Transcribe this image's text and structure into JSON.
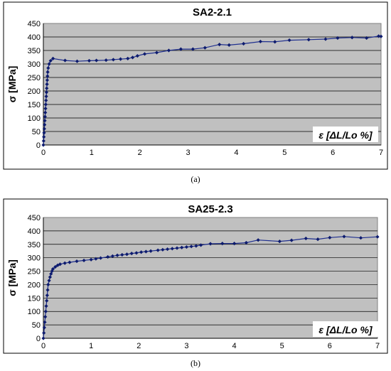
{
  "chart_data": [
    {
      "type": "line",
      "title": "SA2-2.1",
      "xlabel": "ε [ΔL/Lo %]",
      "ylabel": "σ [MPa]",
      "caption": "(a)",
      "xlim": [
        0,
        7
      ],
      "ylim": [
        0,
        450
      ],
      "xticks": [
        0,
        1,
        2,
        3,
        4,
        5,
        6,
        7
      ],
      "yticks": [
        0,
        50,
        100,
        150,
        200,
        250,
        300,
        350,
        400,
        450
      ],
      "grid": true,
      "legend": "none",
      "colors": {
        "plot_bg": "#c0c0c0",
        "line": "#1f2f8f",
        "marker": "#0d1b6e",
        "grid": "#000000"
      },
      "series": [
        {
          "x": [
            0,
            0.005,
            0.01,
            0.015,
            0.02,
            0.025,
            0.03,
            0.035,
            0.04,
            0.045,
            0.05,
            0.055,
            0.06,
            0.065,
            0.07,
            0.075,
            0.08,
            0.085,
            0.09,
            0.1,
            0.12,
            0.15,
            0.2,
            0.45,
            0.7,
            0.95,
            1.1,
            1.3,
            1.45,
            1.6,
            1.75,
            1.85,
            1.95,
            2.1,
            2.35,
            2.6,
            2.85,
            3.1,
            3.35,
            3.65,
            3.85,
            4.15,
            4.5,
            4.8,
            5.1,
            5.5,
            5.85,
            6.1,
            6.4,
            6.7,
            6.95,
            7.0
          ],
          "values": [
            0,
            15,
            30,
            45,
            60,
            75,
            90,
            105,
            120,
            135,
            150,
            165,
            180,
            195,
            210,
            225,
            240,
            255,
            270,
            285,
            300,
            312,
            320,
            313,
            310,
            312,
            313,
            314,
            316,
            318,
            320,
            324,
            330,
            337,
            342,
            350,
            355,
            355,
            360,
            372,
            370,
            375,
            383,
            382,
            388,
            390,
            392,
            396,
            398,
            396,
            403,
            402
          ]
        }
      ]
    },
    {
      "type": "line",
      "title": "SA25-2.3",
      "xlabel": "ε [ΔL/Lo %]",
      "ylabel": "σ [MPa]",
      "caption": "(b)",
      "xlim": [
        0,
        7
      ],
      "ylim": [
        0,
        450
      ],
      "xticks": [
        0,
        1,
        2,
        3,
        4,
        5,
        6,
        7
      ],
      "yticks": [
        0,
        50,
        100,
        150,
        200,
        250,
        300,
        350,
        400,
        450
      ],
      "grid": true,
      "legend": "none",
      "colors": {
        "plot_bg": "#c0c0c0",
        "line": "#1f2f8f",
        "marker": "#0d1b6e",
        "grid": "#000000"
      },
      "series": [
        {
          "x": [
            0,
            0.01,
            0.02,
            0.03,
            0.04,
            0.05,
            0.06,
            0.07,
            0.08,
            0.09,
            0.1,
            0.12,
            0.14,
            0.16,
            0.18,
            0.2,
            0.25,
            0.3,
            0.35,
            0.45,
            0.55,
            0.7,
            0.85,
            1.0,
            1.1,
            1.2,
            1.35,
            1.45,
            1.55,
            1.65,
            1.75,
            1.85,
            1.95,
            2.05,
            2.15,
            2.25,
            2.4,
            2.5,
            2.6,
            2.7,
            2.8,
            2.9,
            3.0,
            3.1,
            3.2,
            3.3,
            3.5,
            3.75,
            4.0,
            4.25,
            4.5,
            4.95,
            5.2,
            5.5,
            5.75,
            6.0,
            6.3,
            6.65,
            7.0
          ],
          "values": [
            0,
            20,
            40,
            60,
            80,
            100,
            120,
            140,
            160,
            180,
            200,
            215,
            228,
            240,
            250,
            258,
            266,
            272,
            276,
            280,
            283,
            287,
            290,
            293,
            296,
            299,
            303,
            306,
            309,
            311,
            313,
            316,
            318,
            321,
            323,
            325,
            328,
            330,
            332,
            334,
            336,
            338,
            340,
            342,
            344,
            347,
            352,
            353,
            353,
            356,
            366,
            361,
            365,
            372,
            369,
            375,
            379,
            374,
            378
          ]
        }
      ]
    }
  ]
}
